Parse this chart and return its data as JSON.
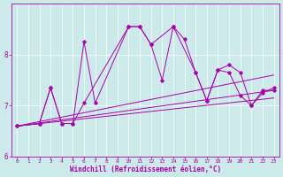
{
  "xlabel": "Windchill (Refroidissement éolien,°C)",
  "bg_color": "#cceaea",
  "line_color": "#aa00aa",
  "xlim": [
    -0.5,
    23.5
  ],
  "ylim": [
    6.0,
    9.0
  ],
  "yticks": [
    6,
    7,
    8
  ],
  "xticks": [
    0,
    1,
    2,
    3,
    4,
    5,
    6,
    7,
    8,
    9,
    10,
    11,
    12,
    13,
    14,
    15,
    16,
    17,
    18,
    19,
    20,
    21,
    22,
    23
  ],
  "series1_x": [
    0,
    2,
    3,
    4,
    5,
    6,
    7,
    10,
    11,
    12,
    13,
    14,
    15,
    16,
    17,
    18,
    19,
    20,
    21,
    22,
    23
  ],
  "series1_y": [
    6.6,
    6.65,
    7.35,
    6.65,
    6.65,
    8.25,
    7.05,
    8.55,
    8.55,
    8.2,
    7.5,
    8.55,
    8.3,
    7.65,
    7.1,
    7.7,
    7.65,
    7.2,
    7.0,
    7.3,
    7.3
  ],
  "series2_x": [
    0,
    2,
    3,
    4,
    5,
    6,
    10,
    11,
    12,
    14,
    16,
    17,
    18,
    19,
    20,
    21,
    22,
    23
  ],
  "series2_y": [
    6.6,
    6.65,
    7.35,
    6.65,
    6.65,
    7.05,
    8.55,
    8.55,
    8.2,
    8.55,
    7.65,
    7.1,
    7.7,
    7.8,
    7.65,
    7.0,
    7.25,
    7.35
  ],
  "trend1_x": [
    0,
    23
  ],
  "trend1_y": [
    6.6,
    7.6
  ],
  "trend2_x": [
    0,
    23
  ],
  "trend2_y": [
    6.6,
    7.3
  ],
  "trend3_x": [
    0,
    23
  ],
  "trend3_y": [
    6.6,
    7.15
  ]
}
